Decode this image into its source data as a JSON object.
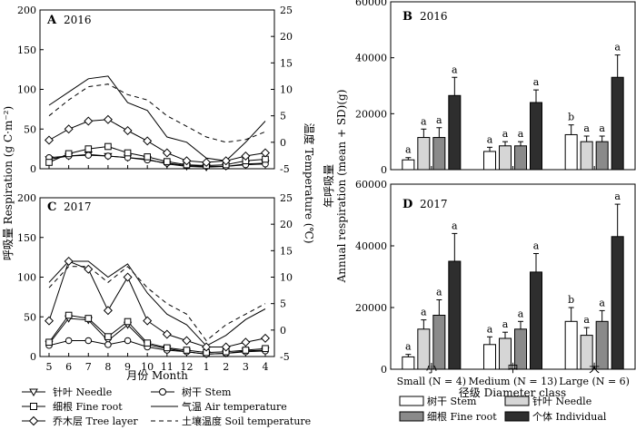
{
  "chart_data": [
    {
      "type": "line",
      "panel_label": "A",
      "year_label": "2016",
      "x": [
        5,
        6,
        7,
        8,
        9,
        10,
        11,
        12,
        1,
        2,
        3,
        4
      ],
      "ylim": [
        0,
        200
      ],
      "y_ticks": [
        0,
        50,
        100,
        150,
        200
      ],
      "y2lim": [
        -5,
        25
      ],
      "y2_ticks": [
        -5,
        0,
        5,
        10,
        15,
        20,
        25
      ],
      "series": [
        {
          "name": "针叶 Needle",
          "marker": "triangle",
          "axis": "left",
          "values": [
            12,
            16,
            18,
            16,
            14,
            12,
            6,
            3,
            2,
            3,
            6,
            7
          ]
        },
        {
          "name": "树干 Stem",
          "marker": "circle",
          "axis": "left",
          "values": [
            14,
            16,
            17,
            16,
            14,
            11,
            7,
            4,
            3,
            3,
            5,
            6
          ]
        },
        {
          "name": "细根 Fine root",
          "marker": "square",
          "axis": "left",
          "values": [
            8,
            19,
            25,
            28,
            20,
            15,
            9,
            5,
            4,
            5,
            10,
            12
          ]
        },
        {
          "name": "乔木层 Tree layer",
          "marker": "diamond",
          "axis": "left",
          "values": [
            36,
            50,
            60,
            62,
            48,
            35,
            20,
            10,
            8,
            10,
            16,
            20
          ]
        },
        {
          "name": "气温 Air temperature",
          "style": "solid",
          "axis": "right",
          "values": [
            7,
            9.5,
            12,
            12.5,
            7.5,
            6,
            1,
            0,
            -3,
            -3.5,
            0,
            4
          ]
        },
        {
          "name": "土壤温度 Soil temperature",
          "style": "dashed",
          "axis": "right",
          "values": [
            5,
            8,
            10.5,
            11,
            9,
            8,
            5,
            3,
            1,
            0,
            0.5,
            2
          ]
        }
      ]
    },
    {
      "type": "line",
      "panel_label": "C",
      "year_label": "2017",
      "x": [
        5,
        6,
        7,
        8,
        9,
        10,
        11,
        12,
        1,
        2,
        3,
        4
      ],
      "x_tick_labels": [
        "5",
        "6",
        "7",
        "8",
        "9",
        "10",
        "11",
        "12",
        "1",
        "2",
        "3",
        "4"
      ],
      "xlabel": "月份 Month",
      "ylim": [
        0,
        200
      ],
      "y_ticks": [
        0,
        50,
        100,
        150,
        200
      ],
      "y2lim": [
        -5,
        25
      ],
      "y2_ticks": [
        -5,
        0,
        5,
        10,
        15,
        20,
        25
      ],
      "series": [
        {
          "name": "针叶 Needle",
          "marker": "triangle",
          "axis": "left",
          "values": [
            16,
            48,
            46,
            20,
            40,
            15,
            10,
            6,
            3,
            4,
            7,
            8
          ]
        },
        {
          "name": "树干 Stem",
          "marker": "circle",
          "axis": "left",
          "values": [
            14,
            20,
            20,
            15,
            20,
            12,
            8,
            6,
            3,
            4,
            6,
            7
          ]
        },
        {
          "name": "细根 Fine root",
          "marker": "square",
          "axis": "left",
          "values": [
            18,
            52,
            48,
            25,
            44,
            17,
            11,
            8,
            5,
            6,
            8,
            10
          ]
        },
        {
          "name": "乔木层 Tree layer",
          "marker": "diamond",
          "axis": "left",
          "values": [
            45,
            120,
            110,
            58,
            100,
            45,
            28,
            20,
            12,
            12,
            18,
            23
          ]
        },
        {
          "name": "气温 Air temperature",
          "style": "solid",
          "axis": "right",
          "values": [
            9,
            13,
            13,
            10,
            12.5,
            7,
            3,
            1,
            -3,
            -1,
            2,
            4
          ]
        },
        {
          "name": "土壤温度 Soil temperature",
          "style": "dashed",
          "axis": "right",
          "values": [
            8,
            12,
            12,
            9,
            12,
            8,
            5,
            3,
            -2,
            1,
            3,
            5
          ]
        }
      ]
    },
    {
      "type": "bar",
      "panel_label": "B",
      "year_label": "2016",
      "categories": [
        "小",
        "中",
        "大"
      ],
      "category_sublabels": [
        "Small (N = 4)",
        "Medium (N = 13)",
        "Large (N = 6)"
      ],
      "ylim": [
        0,
        60000
      ],
      "y_ticks": [
        0,
        20000,
        40000,
        60000
      ],
      "series": [
        {
          "name": "树干 Stem",
          "color": "#ffffff",
          "values": [
            3500,
            6500,
            12500
          ],
          "sd": [
            800,
            1500,
            3500
          ],
          "letters": [
            "a",
            "a",
            "b"
          ]
        },
        {
          "name": "针叶 Needle",
          "color": "#d6d6d6",
          "values": [
            11500,
            8500,
            10000
          ],
          "sd": [
            3000,
            1500,
            2000
          ],
          "letters": [
            "a",
            "a",
            "a"
          ]
        },
        {
          "name": "细根 Fine root",
          "color": "#8a8a8a",
          "values": [
            11500,
            8500,
            10000
          ],
          "sd": [
            3500,
            1500,
            2000
          ],
          "letters": [
            "a",
            "a",
            "a"
          ]
        },
        {
          "name": "个体 Individual",
          "color": "#2e2e2e",
          "values": [
            26500,
            24000,
            33000
          ],
          "sd": [
            6500,
            4500,
            8000
          ],
          "letters": [
            "a",
            "a",
            "a"
          ]
        }
      ]
    },
    {
      "type": "bar",
      "panel_label": "D",
      "year_label": "2017",
      "categories": [
        "小",
        "中",
        "大"
      ],
      "category_sublabels": [
        "Small (N = 4)",
        "Medium (N = 13)",
        "Large (N = 6)"
      ],
      "xlabel": "径级 Diameter class",
      "ylim": [
        0,
        60000
      ],
      "y_ticks": [
        0,
        20000,
        40000,
        60000
      ],
      "series": [
        {
          "name": "树干 Stem",
          "color": "#ffffff",
          "values": [
            4000,
            8000,
            15500
          ],
          "sd": [
            800,
            2500,
            4500
          ],
          "letters": [
            "a",
            "a",
            "b"
          ]
        },
        {
          "name": "针叶 Needle",
          "color": "#d6d6d6",
          "values": [
            13000,
            10000,
            11000
          ],
          "sd": [
            3000,
            2000,
            2500
          ],
          "letters": [
            "a",
            "a",
            "a"
          ]
        },
        {
          "name": "细根 Fine root",
          "color": "#8a8a8a",
          "values": [
            17500,
            13000,
            15500
          ],
          "sd": [
            5000,
            2500,
            3500
          ],
          "letters": [
            "a",
            "a",
            "a"
          ]
        },
        {
          "name": "个体 Individual",
          "color": "#2e2e2e",
          "values": [
            35000,
            31500,
            43000
          ],
          "sd": [
            9000,
            6000,
            10500
          ],
          "letters": [
            "a",
            "a",
            "a"
          ]
        }
      ]
    }
  ],
  "left_ylabel": "呼吸量 Respiration (g C·m⁻²)",
  "right_ylabel": "温度 Temperature (℃)",
  "bar_ylabel_cn": "年呼吸量",
  "bar_ylabel_en": "Annual respiration (mean + SD)(g)",
  "line_legend": [
    {
      "label": "针叶 Needle",
      "symbol": "triangle"
    },
    {
      "label": "树干 Stem",
      "symbol": "circle"
    },
    {
      "label": "细根 Fine root",
      "symbol": "square"
    },
    {
      "label": "气温 Air temperature",
      "symbol": "solid"
    },
    {
      "label": "乔木层 Tree layer",
      "symbol": "diamond"
    },
    {
      "label": "土壤温度 Soil temperature",
      "symbol": "dashed"
    }
  ],
  "bar_legend": [
    {
      "label": "树干 Stem",
      "color": "#ffffff"
    },
    {
      "label": "针叶 Needle",
      "color": "#d6d6d6"
    },
    {
      "label": "细根 Fine root",
      "color": "#8a8a8a"
    },
    {
      "label": "个体 Individual",
      "color": "#2e2e2e"
    }
  ]
}
